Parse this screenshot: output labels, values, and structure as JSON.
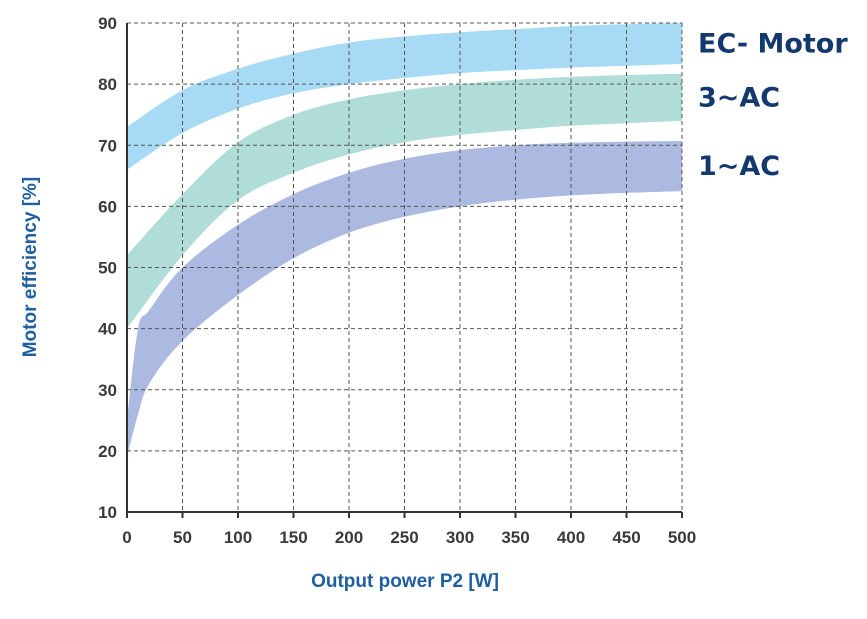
{
  "chart_data": {
    "type": "area",
    "title": "",
    "xlabel": "Output power P2 [W]",
    "ylabel": "Motor efficiency [%]",
    "xlim": [
      0,
      500
    ],
    "ylim": [
      10,
      90
    ],
    "xticks": [
      0,
      50,
      100,
      150,
      200,
      250,
      300,
      350,
      400,
      450,
      500
    ],
    "yticks": [
      10,
      20,
      30,
      40,
      50,
      60,
      70,
      80,
      90
    ],
    "grid": true,
    "series": [
      {
        "name": "EC- Motor",
        "color": "#a6daf5",
        "x": [
          0,
          50,
          100,
          150,
          200,
          250,
          300,
          350,
          400,
          450,
          500
        ],
        "upper": [
          73,
          79,
          82.5,
          85,
          86.8,
          87.8,
          88.5,
          89,
          89.5,
          89.8,
          90
        ],
        "lower": [
          66,
          72,
          76,
          78.5,
          80,
          81,
          81.8,
          82.3,
          82.7,
          83,
          83.3
        ]
      },
      {
        "name": "3~AC",
        "color": "#b1ddd8",
        "x": [
          0,
          50,
          100,
          150,
          200,
          250,
          300,
          350,
          400,
          450,
          500
        ],
        "upper": [
          52,
          62,
          70.5,
          75,
          77.5,
          79,
          80,
          80.7,
          81.2,
          81.5,
          81.7
        ],
        "lower": [
          40,
          52,
          61,
          65.5,
          68.5,
          70.5,
          71.7,
          72.5,
          73.2,
          73.6,
          74
        ]
      },
      {
        "name": "1~AC",
        "color": "#acb9e0",
        "x": [
          0,
          10,
          20,
          50,
          100,
          150,
          200,
          250,
          300,
          350,
          400,
          450,
          500
        ],
        "upper": [
          25,
          40,
          43,
          50,
          57,
          62,
          65.5,
          67.8,
          69.2,
          70,
          70.4,
          70.6,
          70.7
        ],
        "lower": [
          19,
          26,
          31,
          38,
          45.5,
          51.5,
          55.7,
          58.3,
          60,
          61.1,
          61.8,
          62.2,
          62.5
        ]
      }
    ]
  }
}
